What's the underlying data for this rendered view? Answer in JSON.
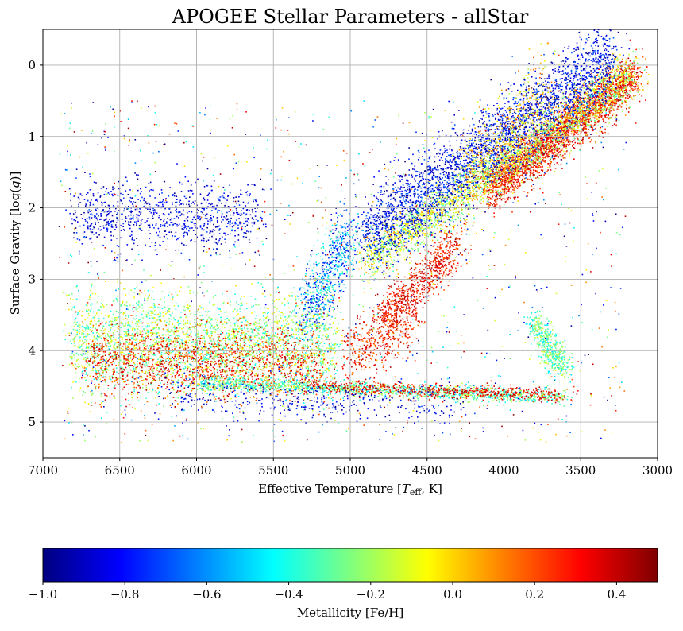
{
  "chart_data": {
    "type": "scatter",
    "title": "APOGEE Stellar Parameters - allStar",
    "xlabel_parts": {
      "prefix": "Effective Temperature [",
      "sym": "T",
      "sub": "eff",
      "suffix": ", K]"
    },
    "ylabel_parts": {
      "prefix": "Surface Gravity [log(",
      "sym": "g",
      "suffix": ")]"
    },
    "xlim": [
      7000,
      3000
    ],
    "ylim": [
      5.5,
      -0.5
    ],
    "x_inverted": true,
    "y_inverted": true,
    "x_ticks": [
      "7000",
      "6500",
      "6000",
      "5500",
      "5000",
      "4500",
      "4000",
      "3500",
      "3000"
    ],
    "x_tick_values": [
      7000,
      6500,
      6000,
      5500,
      5000,
      4500,
      4000,
      3500,
      3000
    ],
    "y_ticks": [
      "0",
      "1",
      "2",
      "3",
      "4",
      "5"
    ],
    "y_tick_values": [
      0,
      1,
      2,
      3,
      4,
      5
    ],
    "grid": true,
    "colorbar": {
      "label": "Metallicity [Fe/H]",
      "range": [
        -1.0,
        0.5
      ],
      "colormap": "jet",
      "orientation": "horizontal",
      "ticks": [
        "−1.0",
        "−0.8",
        "−0.6",
        "−0.4",
        "−0.2",
        "0.0",
        "0.2",
        "0.4"
      ],
      "tick_values": [
        -1.0,
        -0.8,
        -0.6,
        -0.4,
        -0.2,
        0.0,
        0.2,
        0.4
      ]
    },
    "jet_colors": [
      "#00007f",
      "#0000ff",
      "#007fff",
      "#00ffff",
      "#7fff7f",
      "#ffff00",
      "#ff7f00",
      "#ff0000",
      "#7f0000"
    ],
    "population_groups": [
      {
        "teff": [
          4100,
          3150
        ],
        "logg": [
          1.75,
          0.15
        ],
        "width": 0.17,
        "feh": [
          0.15,
          0.45
        ],
        "count": 2600,
        "dist": "ridge"
      },
      {
        "teff": [
          4900,
          3150
        ],
        "logg": [
          2.75,
          0.1
        ],
        "width": 0.18,
        "feh": [
          -0.35,
          0.1
        ],
        "count": 2800,
        "dist": "ridge"
      },
      {
        "teff": [
          4900,
          3300
        ],
        "logg": [
          2.4,
          -0.1
        ],
        "width": 0.28,
        "feh": [
          -1.0,
          -0.65
        ],
        "count": 3000,
        "dist": "ridge"
      },
      {
        "teff": [
          4800,
          4300
        ],
        "logg": [
          3.6,
          2.5
        ],
        "width": 0.15,
        "feh": [
          0.15,
          0.45
        ],
        "count": 800,
        "dist": "ridge"
      },
      {
        "teff": [
          4250,
          3700
        ],
        "logg": [
          1.6,
          0.35
        ],
        "width": 0.3,
        "feh": [
          -0.2,
          0.2
        ],
        "count": 500,
        "dist": "ridge"
      },
      {
        "teff": [
          5300,
          5000
        ],
        "logg": [
          3.5,
          2.4
        ],
        "width": 0.25,
        "feh": [
          -0.9,
          -0.3
        ],
        "count": 700,
        "dist": "ridge"
      },
      {
        "teff": [
          6800,
          5100
        ],
        "logg": [
          3.85,
          3.95
        ],
        "width": 0.35,
        "feh": [
          -0.45,
          0.0
        ],
        "count": 3000,
        "dist": "ridge"
      },
      {
        "teff": [
          6700,
          5200
        ],
        "logg": [
          4.15,
          4.2
        ],
        "width": 0.25,
        "feh": [
          0.1,
          0.45
        ],
        "count": 1500,
        "dist": "ridge"
      },
      {
        "teff": [
          5000,
          4600
        ],
        "logg": [
          4.05,
          3.7
        ],
        "width": 0.2,
        "feh": [
          0.1,
          0.45
        ],
        "count": 400,
        "dist": "ridge"
      },
      {
        "teff": [
          6000,
          3600
        ],
        "logg": [
          4.45,
          4.65
        ],
        "width": 0.05,
        "feh": [
          -0.5,
          -0.1
        ],
        "count": 1400,
        "dist": "ridge"
      },
      {
        "teff": [
          5300,
          3600
        ],
        "logg": [
          4.5,
          4.62
        ],
        "width": 0.05,
        "feh": [
          0.2,
          0.45
        ],
        "count": 600,
        "dist": "ridge"
      },
      {
        "teff": [
          6800,
          5600
        ],
        "logg": [
          2.1,
          2.15
        ],
        "width": 0.25,
        "feh": [
          -1.0,
          -0.7
        ],
        "count": 900,
        "dist": "ridge"
      },
      {
        "teff": [
          6200,
          4300
        ],
        "logg": [
          4.6,
          4.8
        ],
        "width": 0.15,
        "feh": [
          -1.0,
          -0.7
        ],
        "count": 400,
        "dist": "ridge"
      },
      {
        "teff": [
          3800,
          3600
        ],
        "logg": [
          3.6,
          4.3
        ],
        "width": 0.1,
        "feh": [
          -0.5,
          -0.1
        ],
        "count": 500,
        "dist": "ridge"
      },
      {
        "teff": [
          6900,
          3200
        ],
        "logg": [
          0.5,
          5.3
        ],
        "width": 0.0,
        "feh": [
          -1.0,
          0.5
        ],
        "count": 1200,
        "dist": "box"
      }
    ]
  }
}
